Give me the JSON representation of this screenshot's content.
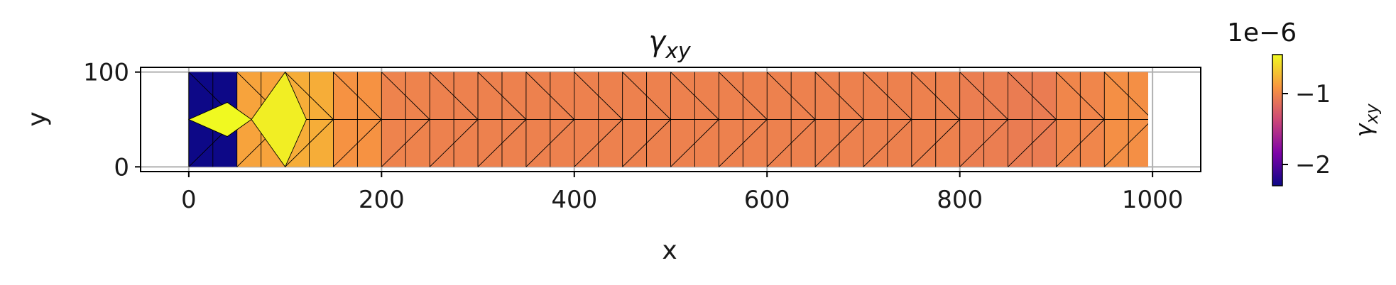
{
  "chart_data": {
    "type": "heatmap",
    "title": "γ_xy",
    "title_parts": {
      "base": "γ",
      "sub": "xy"
    },
    "xlabel": "x",
    "ylabel": "y",
    "xlim": [
      -50,
      1050
    ],
    "ylim": [
      -5,
      105
    ],
    "xticks": [
      0,
      200,
      400,
      600,
      800,
      1000
    ],
    "xtick_labels": [
      "0",
      "200",
      "400",
      "600",
      "800",
      "1000"
    ],
    "yticks": [
      0,
      100
    ],
    "ytick_labels": [
      "0",
      "100"
    ],
    "grid": true,
    "colormap": "plasma",
    "colorbar": {
      "label": "γ_xy",
      "label_parts": {
        "base": "γ",
        "sub": "xy"
      },
      "offset_text": "1e−6",
      "vmin": -2.3,
      "vmax": -0.45,
      "ticks": [
        -2,
        -1
      ],
      "tick_labels": [
        "−2",
        "−1"
      ]
    },
    "mesh_columns": [
      {
        "x_range": [
          0,
          50
        ],
        "value": -2.3
      },
      {
        "x_range": [
          50,
          100
        ],
        "value": -0.85
      },
      {
        "x_range": [
          100,
          150
        ],
        "value": -0.8
      },
      {
        "x_range": [
          150,
          200
        ],
        "value": -0.93
      },
      {
        "x_range": [
          200,
          250
        ],
        "value": -1.02
      },
      {
        "x_range": [
          250,
          300
        ],
        "value": -1.03
      },
      {
        "x_range": [
          300,
          350
        ],
        "value": -1.03
      },
      {
        "x_range": [
          350,
          400
        ],
        "value": -1.03
      },
      {
        "x_range": [
          400,
          450
        ],
        "value": -1.03
      },
      {
        "x_range": [
          450,
          500
        ],
        "value": -1.03
      },
      {
        "x_range": [
          500,
          550
        ],
        "value": -1.03
      },
      {
        "x_range": [
          550,
          600
        ],
        "value": -1.03
      },
      {
        "x_range": [
          600,
          650
        ],
        "value": -1.03
      },
      {
        "x_range": [
          650,
          700
        ],
        "value": -1.03
      },
      {
        "x_range": [
          700,
          750
        ],
        "value": -1.03
      },
      {
        "x_range": [
          750,
          800
        ],
        "value": -1.03
      },
      {
        "x_range": [
          800,
          850
        ],
        "value": -1.05
      },
      {
        "x_range": [
          850,
          900
        ],
        "value": -1.06
      },
      {
        "x_range": [
          900,
          950
        ],
        "value": -1.0
      },
      {
        "x_range": [
          950,
          1000
        ],
        "value": -0.95
      }
    ],
    "hot_elements": [
      {
        "points": [
          [
            0,
            50
          ],
          [
            40,
            68
          ],
          [
            65,
            50
          ],
          [
            40,
            32
          ]
        ],
        "value": -0.45
      },
      {
        "points": [
          [
            65,
            50
          ],
          [
            100,
            100
          ],
          [
            122,
            50
          ],
          [
            100,
            0
          ]
        ],
        "value": -0.5
      }
    ]
  }
}
